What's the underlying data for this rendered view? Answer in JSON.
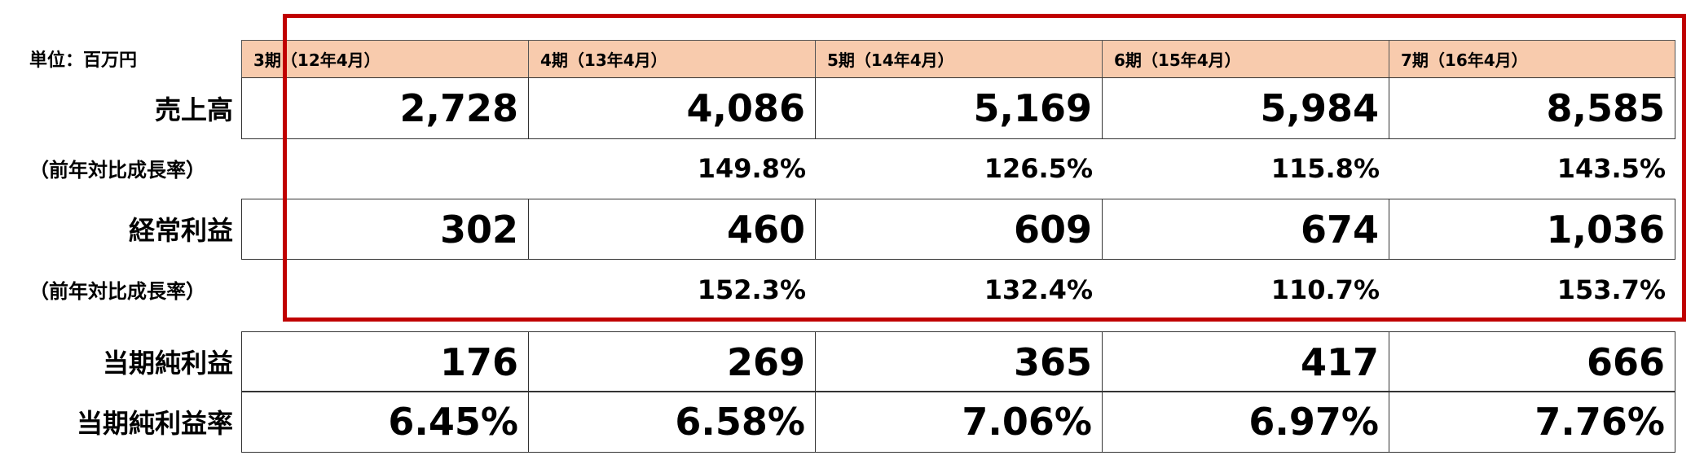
{
  "table": {
    "unit": "単位：百万円",
    "columns": [
      "3期（12年4月）",
      "4期（13年4月）",
      "5期（14年4月）",
      "6期（15年4月）",
      "7期（16年4月）"
    ],
    "rows": [
      {
        "label": "売上高",
        "cells": [
          "2,728",
          "4,086",
          "5,169",
          "5,984",
          "8,585"
        ]
      },
      {
        "label": "（前年対比成長率）",
        "cells": [
          null,
          "149.8%",
          "126.5%",
          "115.8%",
          "143.5%"
        ]
      },
      {
        "label": "経常利益",
        "cells": [
          "302",
          "460",
          "609",
          "674",
          "1,036"
        ]
      },
      {
        "label": "（前年対比成長率）",
        "cells": [
          null,
          "152.3%",
          "132.4%",
          "110.7%",
          "153.7%"
        ]
      },
      {
        "label": "当期純利益",
        "cells": [
          "176",
          "269",
          "365",
          "417",
          "666"
        ]
      },
      {
        "label": "当期純利益率",
        "cells": [
          "6.45%",
          "6.58%",
          "7.06%",
          "6.97%",
          "7.76%"
        ]
      }
    ]
  }
}
